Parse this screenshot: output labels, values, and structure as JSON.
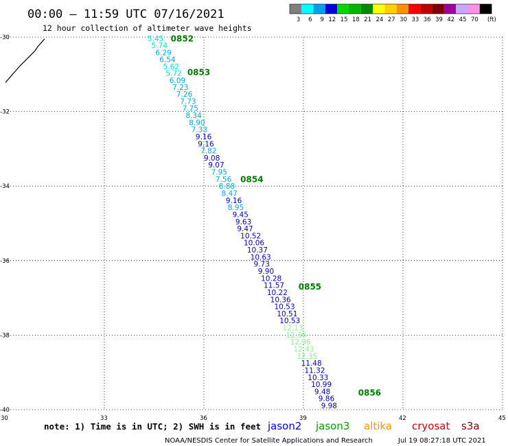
{
  "header": {
    "title": "00:00 – 11:59 UTC 07/16/2021",
    "subtitle": "12 hour collection of altimeter wave heights"
  },
  "colorbar": {
    "unit": "(ft)",
    "swatches": [
      {
        "color": "#7f7f7f",
        "label": "3"
      },
      {
        "color": "#00ffff",
        "label": "6"
      },
      {
        "color": "#00a0f0",
        "label": "9"
      },
      {
        "color": "#0000d8",
        "label": "12"
      },
      {
        "color": "#00d800",
        "label": "15"
      },
      {
        "color": "#00b800",
        "label": "18"
      },
      {
        "color": "#008a00",
        "label": "21"
      },
      {
        "color": "#ffff00",
        "label": "24"
      },
      {
        "color": "#ffd000",
        "label": "27"
      },
      {
        "color": "#ff9000",
        "label": "30"
      },
      {
        "color": "#ff0000",
        "label": "33"
      },
      {
        "color": "#c00000",
        "label": "36"
      },
      {
        "color": "#800000",
        "label": "39"
      },
      {
        "color": "#a000a0",
        "label": "42"
      },
      {
        "color": "#c8a8ff",
        "label": "45"
      },
      {
        "color": "#ff90e8",
        "label": "70"
      },
      {
        "color": "#000000",
        "label": ""
      }
    ]
  },
  "footer": {
    "note": "note: 1) Time is in UTC; 2) SWH is in feet",
    "satellites": [
      {
        "name": "jason2",
        "color": "#0000ff"
      },
      {
        "name": "jason3",
        "color": "#00a000"
      },
      {
        "name": "altika",
        "color": "#ff9000"
      },
      {
        "name": "cryosat",
        "color": "#d00000"
      },
      {
        "name": "s3a",
        "color": "#800000"
      }
    ],
    "credit": "NOAA/NESDIS Center for Satellite Applications and Research",
    "timestamp": "Jul 19 08:27:18 UTC 2021"
  },
  "chart_data": {
    "type": "scatter",
    "xlim": [
      30,
      45
    ],
    "ylim": [
      -40,
      -30
    ],
    "x_ticks": [
      30,
      33,
      36,
      39,
      42,
      45
    ],
    "y_ticks": [
      -30,
      -32,
      -34,
      -36,
      -38,
      -40
    ],
    "x_tick_labels": [
      "30",
      "33",
      "36",
      "39",
      "42",
      "45"
    ],
    "y_tick_labels": [
      "-30",
      "-32",
      "-34",
      "-36",
      "-38",
      "-40"
    ],
    "grid": true,
    "coastline": [
      [
        30.02,
        -31.22
      ],
      [
        30.45,
        -30.78
      ],
      [
        30.9,
        -30.38
      ],
      [
        31.0,
        -30.25
      ],
      [
        31.2,
        -30.05
      ]
    ],
    "time_labels": [
      {
        "x": 35.0,
        "y": -30.05,
        "text": "0852"
      },
      {
        "x": 35.5,
        "y": -30.95,
        "text": "0853"
      },
      {
        "x": 37.1,
        "y": -33.82,
        "text": "0854"
      },
      {
        "x": 38.85,
        "y": -36.7,
        "text": "0855"
      },
      {
        "x": 40.65,
        "y": -39.55,
        "text": "0856"
      }
    ],
    "points": [
      {
        "x": 34.3,
        "y": -30.04,
        "v": "5.45",
        "c": "#00e0e0"
      },
      {
        "x": 34.42,
        "y": -30.22,
        "v": "5.74",
        "c": "#00e0e0"
      },
      {
        "x": 34.54,
        "y": -30.41,
        "v": "6.29",
        "c": "#00a8e8"
      },
      {
        "x": 34.66,
        "y": -30.6,
        "v": "6.54",
        "c": "#00a8e8"
      },
      {
        "x": 34.77,
        "y": -30.79,
        "v": "5.62",
        "c": "#00e0e0"
      },
      {
        "x": 34.85,
        "y": -30.97,
        "v": "5.72",
        "c": "#00e0e0"
      },
      {
        "x": 34.96,
        "y": -31.16,
        "v": "6.09",
        "c": "#00a8e8"
      },
      {
        "x": 35.05,
        "y": -31.34,
        "v": "7.23",
        "c": "#00a8e8"
      },
      {
        "x": 35.17,
        "y": -31.53,
        "v": "7.26",
        "c": "#00a8e8"
      },
      {
        "x": 35.28,
        "y": -31.72,
        "v": "7.73",
        "c": "#00a8e8"
      },
      {
        "x": 35.35,
        "y": -31.91,
        "v": "7.75",
        "c": "#00a8e8"
      },
      {
        "x": 35.45,
        "y": -32.1,
        "v": "8.34",
        "c": "#00a8e8"
      },
      {
        "x": 35.55,
        "y": -32.29,
        "v": "8.90",
        "c": "#00a8e8"
      },
      {
        "x": 35.62,
        "y": -32.48,
        "v": "7.33",
        "c": "#00a8e8"
      },
      {
        "x": 35.75,
        "y": -32.67,
        "v": "9.16",
        "c": "#0000c0"
      },
      {
        "x": 35.82,
        "y": -32.86,
        "v": "9.16",
        "c": "#0000c0"
      },
      {
        "x": 35.9,
        "y": -33.05,
        "v": "7.82",
        "c": "#00a8e8"
      },
      {
        "x": 36.0,
        "y": -33.24,
        "v": "9.08",
        "c": "#0000c0"
      },
      {
        "x": 36.13,
        "y": -33.43,
        "v": "9.07",
        "c": "#0000c0"
      },
      {
        "x": 36.22,
        "y": -33.62,
        "v": "7.95",
        "c": "#00a8e8"
      },
      {
        "x": 36.35,
        "y": -33.81,
        "v": "7.56",
        "c": "#00a8e8"
      },
      {
        "x": 36.45,
        "y": -34.0,
        "v": "8.88",
        "c": "#00a8e8"
      },
      {
        "x": 36.53,
        "y": -34.19,
        "v": "8.47",
        "c": "#00a8e8"
      },
      {
        "x": 36.66,
        "y": -34.38,
        "v": "9.16",
        "c": "#0000c0"
      },
      {
        "x": 36.72,
        "y": -34.57,
        "v": "8.95",
        "c": "#00a8e8"
      },
      {
        "x": 36.86,
        "y": -34.76,
        "v": "9.45",
        "c": "#0000c0"
      },
      {
        "x": 36.95,
        "y": -34.95,
        "v": "9.63",
        "c": "#0000c0"
      },
      {
        "x": 37.0,
        "y": -35.14,
        "v": "9.47",
        "c": "#0000c0"
      },
      {
        "x": 37.1,
        "y": -35.33,
        "v": "10.52",
        "c": "#0000c0"
      },
      {
        "x": 37.2,
        "y": -35.52,
        "v": "10.06",
        "c": "#0000c0"
      },
      {
        "x": 37.3,
        "y": -35.71,
        "v": "10.37",
        "c": "#0000c0"
      },
      {
        "x": 37.4,
        "y": -35.9,
        "v": "10.63",
        "c": "#0000c0"
      },
      {
        "x": 37.5,
        "y": -36.09,
        "v": "9.73",
        "c": "#0000c0"
      },
      {
        "x": 37.63,
        "y": -36.28,
        "v": "9.90",
        "c": "#0000c0"
      },
      {
        "x": 37.72,
        "y": -36.47,
        "v": "10.28",
        "c": "#0000c0"
      },
      {
        "x": 37.8,
        "y": -36.66,
        "v": "11.57",
        "c": "#0000c0"
      },
      {
        "x": 37.9,
        "y": -36.85,
        "v": "10.22",
        "c": "#0000c0"
      },
      {
        "x": 38.0,
        "y": -37.04,
        "v": "10.36",
        "c": "#0000c0"
      },
      {
        "x": 38.12,
        "y": -37.23,
        "v": "10.53",
        "c": "#0000c0"
      },
      {
        "x": 38.2,
        "y": -37.42,
        "v": "10.51",
        "c": "#0000c0"
      },
      {
        "x": 38.28,
        "y": -37.61,
        "v": "10.53",
        "c": "#0000c0"
      },
      {
        "x": 38.37,
        "y": -37.8,
        "v": "12.13",
        "c": "#90f090"
      },
      {
        "x": 38.47,
        "y": -37.99,
        "v": "12.36",
        "c": "#90f090"
      },
      {
        "x": 38.6,
        "y": -38.18,
        "v": "12.96",
        "c": "#90f090"
      },
      {
        "x": 38.7,
        "y": -38.37,
        "v": "12.43",
        "c": "#90f090"
      },
      {
        "x": 38.8,
        "y": -38.56,
        "v": "12.35",
        "c": "#90f090"
      },
      {
        "x": 38.93,
        "y": -38.75,
        "v": "11.48",
        "c": "#0000c0"
      },
      {
        "x": 39.03,
        "y": -38.94,
        "v": "11.32",
        "c": "#0000c0"
      },
      {
        "x": 39.13,
        "y": -39.13,
        "v": "10.33",
        "c": "#0000c0"
      },
      {
        "x": 39.23,
        "y": -39.32,
        "v": "10.99",
        "c": "#0000c0"
      },
      {
        "x": 39.33,
        "y": -39.51,
        "v": "9.48",
        "c": "#0000c0"
      },
      {
        "x": 39.45,
        "y": -39.7,
        "v": "9.86",
        "c": "#0000c0"
      },
      {
        "x": 39.53,
        "y": -39.89,
        "v": "9.98",
        "c": "#0000c0"
      }
    ]
  }
}
